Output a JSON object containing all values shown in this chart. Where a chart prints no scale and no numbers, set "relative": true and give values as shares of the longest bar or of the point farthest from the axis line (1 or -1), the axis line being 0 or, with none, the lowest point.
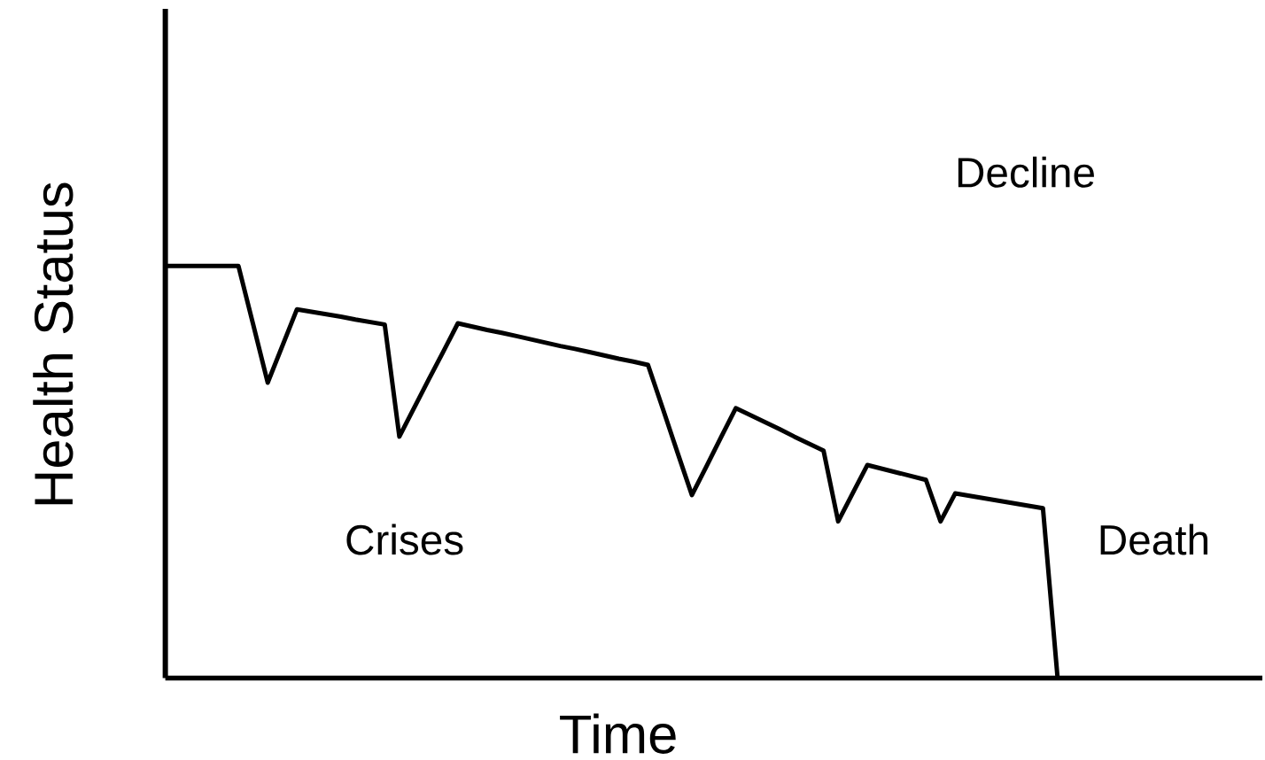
{
  "chart_data": {
    "type": "line",
    "relative": true,
    "xlabel": "Time",
    "ylabel": "Health Status",
    "annotations": [
      "Decline",
      "Crises",
      "Death"
    ],
    "categories": [
      null,
      null,
      null,
      null,
      null,
      null,
      null,
      null,
      null,
      null,
      null,
      null,
      null,
      null,
      null,
      null,
      null,
      null,
      null,
      null,
      null,
      null,
      null,
      null,
      null,
      null,
      null,
      null,
      null,
      null,
      null,
      null,
      null,
      null,
      null,
      null,
      null,
      null,
      null,
      null,
      null,
      null,
      null,
      null,
      null,
      null,
      null,
      null,
      null,
      null,
      null,
      null,
      null,
      null,
      null,
      null,
      null,
      null,
      null,
      null,
      null,
      null,
      null,
      null,
      null,
      null,
      null,
      null,
      null,
      null,
      null,
      null,
      null,
      null,
      null,
      null
    ],
    "series": [
      {
        "color": "#000000",
        "values": [
          1,
          1,
          1,
          1,
          1,
          1,
          0.859,
          0.717,
          0.806,
          0.895,
          0.889,
          0.883,
          0.877,
          0.87,
          0.864,
          0.858,
          0.586,
          0.655,
          0.724,
          0.792,
          0.861,
          0.853,
          0.845,
          0.838,
          0.83,
          0.822,
          0.814,
          0.806,
          0.799,
          0.791,
          0.783,
          0.775,
          0.768,
          0.76,
          0.655,
          0.549,
          0.444,
          0.514,
          0.585,
          0.655,
          0.638,
          0.621,
          0.604,
          0.586,
          0.569,
          0.552,
          0.38,
          0.449,
          0.517,
          0.508,
          0.499,
          0.49,
          0.481,
          0.38,
          0.448,
          0.442,
          0.436,
          0.43,
          0.424,
          0.418,
          0.412,
          0,
          null,
          null,
          null,
          null,
          null,
          null,
          null,
          null,
          null,
          null,
          null,
          null,
          null,
          null
        ]
      }
    ],
    "marker": "none",
    "line_style": "solid"
  }
}
